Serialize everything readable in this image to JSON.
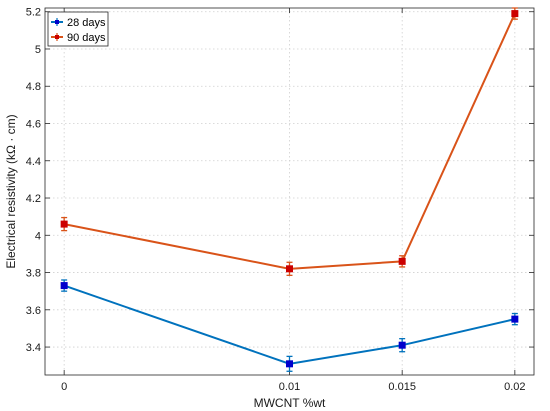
{
  "chart_data": {
    "type": "line",
    "xlabel": "MWCNT %wt",
    "ylabel": "Electrical resistivity (kΩ · cm)",
    "categories": [
      "0",
      "0.01",
      "0.015",
      "0.02"
    ],
    "x": [
      0,
      0.01,
      0.015,
      0.02
    ],
    "ylim": [
      3.25,
      5.22
    ],
    "yticks": [
      3.4,
      3.6,
      3.8,
      4,
      4.2,
      4.4,
      4.6,
      4.8,
      5,
      5.2
    ],
    "ytick_labels": [
      "3.4",
      "3.6",
      "3.8",
      "4",
      "4.2",
      "4.4",
      "4.6",
      "4.8",
      "5",
      "5.2"
    ],
    "grid": true,
    "legend_position": "top-left",
    "series": [
      {
        "name": "28 days",
        "color": "#0072BD",
        "marker_color": "#0000CC",
        "values": [
          3.73,
          3.31,
          3.41,
          3.55
        ],
        "errors": [
          0.03,
          0.04,
          0.035,
          0.03
        ]
      },
      {
        "name": "90 days",
        "color": "#D95319",
        "marker_color": "#CC0000",
        "values": [
          4.06,
          3.82,
          3.86,
          5.19
        ],
        "errors": [
          0.035,
          0.035,
          0.03,
          0.03
        ]
      }
    ]
  }
}
